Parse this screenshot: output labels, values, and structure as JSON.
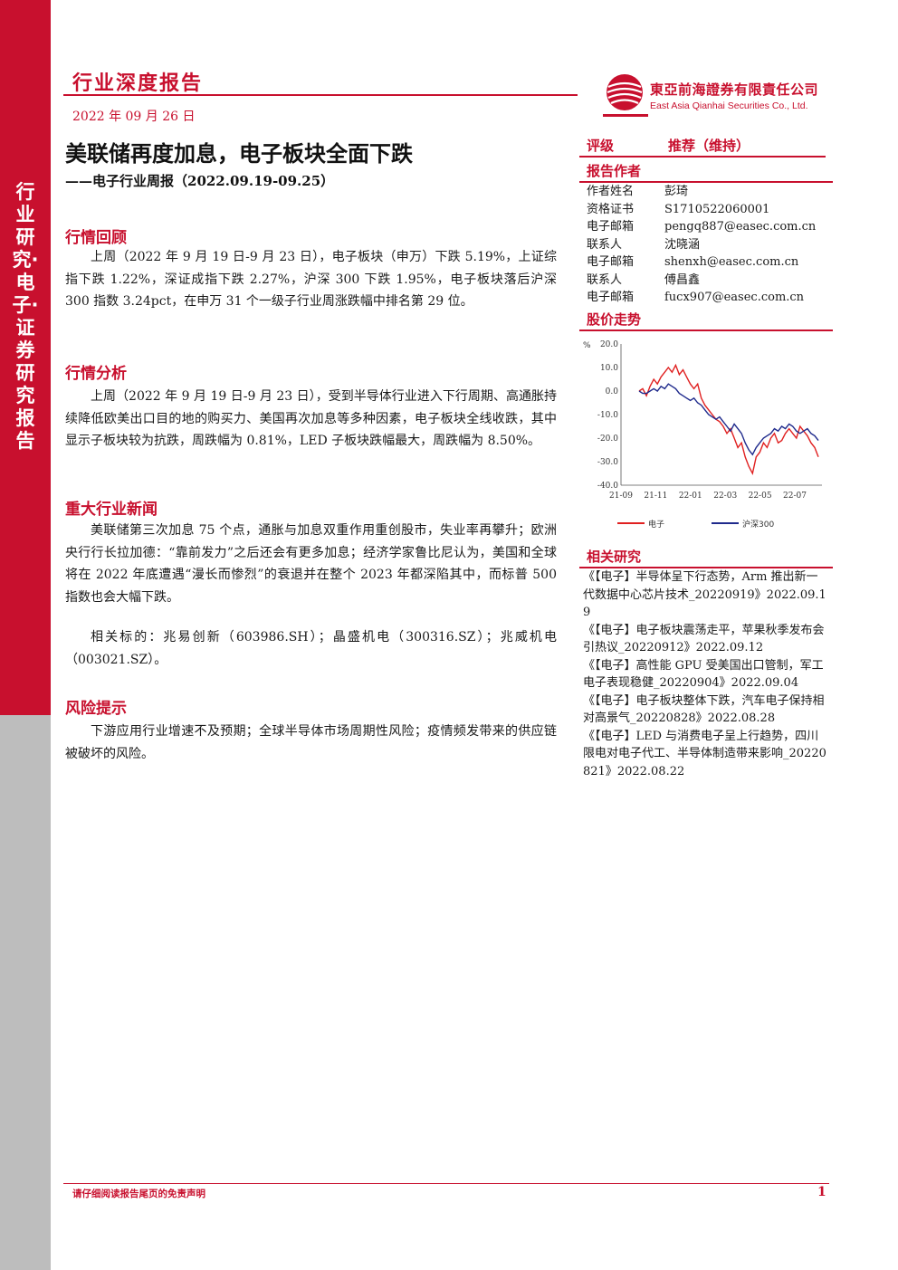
{
  "sidebar": {
    "text": "行业研究·电子·证券研究报告"
  },
  "header": {
    "report_type": "行业深度报告",
    "date": "2022 年 09 月 26 日",
    "company_cn": "東亞前海證券有限責任公司",
    "company_en": "East Asia Qianhai Securities Co., Ltd.",
    "colors": {
      "brand": "#c8102e"
    }
  },
  "title": "美联储再度加息，电子板块全面下跌",
  "subtitle": "——电子行业周报（2022.09.19-09.25）",
  "sections": [
    {
      "heading": "行情回顾",
      "paragraphs": [
        "上周（2022 年 9 月 19 日-9 月 23 日），电子板块（申万）下跌 5.19%，上证综指下跌 1.22%，深证成指下跌 2.27%，沪深 300 下跌 1.95%，电子板块落后沪深 300 指数 3.24pct，在申万 31 个一级子行业周涨跌幅中排名第 29 位。"
      ]
    },
    {
      "heading": "行情分析",
      "paragraphs": [
        "上周（2022 年 9 月 19 日-9 月 23 日），受到半导体行业进入下行周期、高通胀持续降低欧美出口目的地的购买力、美国再次加息等多种因素，电子板块全线收跌，其中显示子板块较为抗跌，周跌幅为 0.81%，LED 子板块跌幅最大，周跌幅为 8.50%。"
      ]
    },
    {
      "heading": "重大行业新闻",
      "paragraphs": [
        "美联储第三次加息 75 个点，通胀与加息双重作用重创股市，失业率再攀升；欧洲央行行长拉加德：“靠前发力”之后还会有更多加息；经济学家鲁比尼认为，美国和全球将在 2022 年底遭遇“漫长而惨烈”的衰退并在整个 2023 年都深陷其中，而标普 500 指数也会大幅下跌。",
        "相关标的：兆易创新（603986.SH）；晶盛机电（300316.SZ）；兆威机电（003021.SZ）。"
      ]
    },
    {
      "heading": "风险提示",
      "paragraphs": [
        "下游应用行业增速不及预期；全球半导体市场周期性风险；疫情频发带来的供应链被破坏的风险。"
      ]
    }
  ],
  "rating": {
    "label": "评级",
    "value": "推荐（维持）"
  },
  "authors": {
    "heading": "报告作者",
    "rows": [
      {
        "k": "作者姓名",
        "v": "彭琦"
      },
      {
        "k": "资格证书",
        "v": "S1710522060001"
      },
      {
        "k": "电子邮箱",
        "v": "pengq887@easec.com.cn"
      },
      {
        "k": "联系人",
        "v": "沈晓涵"
      },
      {
        "k": "电子邮箱",
        "v": "shenxh@easec.com.cn"
      },
      {
        "k": "联系人",
        "v": "傅昌鑫"
      },
      {
        "k": "电子邮箱",
        "v": "fucx907@easec.com.cn"
      }
    ]
  },
  "chart_heading": "股价走势",
  "chart_data": {
    "type": "line",
    "title": "",
    "ylabel": "%",
    "ylim": [
      -40,
      20
    ],
    "yticks": [
      "20.0",
      "10.0",
      "0.0",
      "-10.0",
      "-20.0",
      "-30.0",
      "-40.0"
    ],
    "x_ticks": [
      "21-09",
      "21-11",
      "22-01",
      "22-03",
      "22-05",
      "22-07"
    ],
    "legend_position": "bottom",
    "series": [
      {
        "name": "电子",
        "color": "#e02020",
        "values": [
          0,
          1,
          -2,
          2,
          5,
          3,
          6,
          8,
          10,
          8,
          11,
          7,
          9,
          6,
          3,
          1,
          3,
          -3,
          -6,
          -8,
          -10,
          -12,
          -13,
          -15,
          -18,
          -16,
          -20,
          -24,
          -22,
          -28,
          -32,
          -35,
          -28,
          -26,
          -22,
          -24,
          -20,
          -18,
          -22,
          -21,
          -18,
          -16,
          -18,
          -20,
          -15,
          -17,
          -19,
          -22,
          -24,
          -28
        ]
      },
      {
        "name": "沪深300",
        "color": "#1f2a8c",
        "values": [
          0,
          -1,
          -1,
          0,
          1,
          0,
          2,
          1,
          3,
          2,
          1,
          -1,
          -2,
          -3,
          -4,
          -3,
          -5,
          -6,
          -8,
          -10,
          -11,
          -12,
          -11,
          -13,
          -15,
          -17,
          -14,
          -16,
          -18,
          -22,
          -25,
          -27,
          -24,
          -22,
          -20,
          -19,
          -18,
          -16,
          -17,
          -15,
          -16,
          -14,
          -15,
          -17,
          -18,
          -17,
          -16,
          -18,
          -19,
          -21
        ]
      }
    ]
  },
  "related": {
    "heading": "相关研究",
    "items": [
      "《【电子】半导体呈下行态势，Arm 推出新一代数据中心芯片技术_20220919》2022.09.19",
      "《【电子】电子板块震荡走平，苹果秋季发布会引热议_20220912》2022.09.12",
      "《【电子】高性能 GPU 受美国出口管制，军工电子表现稳健_20220904》2022.09.04",
      "《【电子】电子板块整体下跌，汽车电子保持相对高景气_20220828》2022.08.28",
      "《【电子】LED 与消费电子呈上行趋势，四川限电对电子代工、半导体制造带来影响_20220821》2022.08.22"
    ]
  },
  "footer": {
    "note": "请仔细阅读报告尾页的免责声明",
    "page": "1"
  }
}
